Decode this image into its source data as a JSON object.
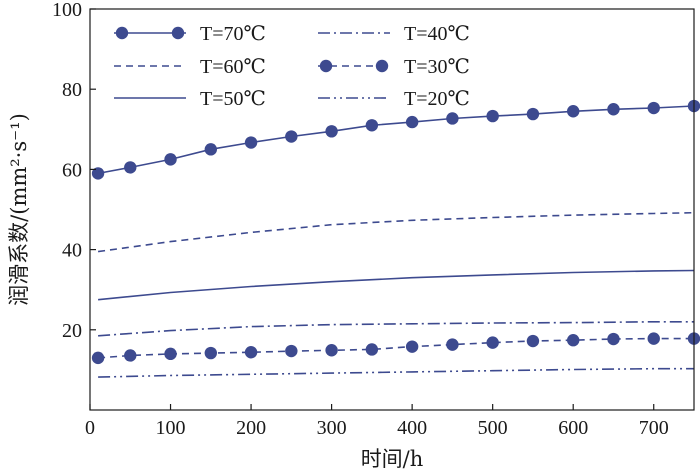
{
  "chart_data": {
    "type": "line",
    "xlabel": "时间/h",
    "ylabel": "润滑系数/(mm²·s⁻¹)",
    "xlim": [
      0,
      750
    ],
    "ylim": [
      0,
      100
    ],
    "xticks": [
      0,
      100,
      200,
      300,
      400,
      500,
      600,
      700
    ],
    "yticks": [
      20,
      40,
      60,
      80,
      100
    ],
    "grid": false,
    "legend_position": "top",
    "line_color": "#3d4a8f",
    "series": [
      {
        "name": "T=70℃",
        "style": "solid-markers",
        "x": [
          10,
          50,
          100,
          150,
          200,
          250,
          300,
          350,
          400,
          450,
          500,
          550,
          600,
          650,
          700,
          750
        ],
        "y": [
          59,
          60.5,
          62.5,
          65,
          66.7,
          68.2,
          69.5,
          71,
          71.8,
          72.7,
          73.3,
          73.8,
          74.5,
          75,
          75.3,
          75.8
        ]
      },
      {
        "name": "T=60℃",
        "style": "dashed",
        "x": [
          10,
          100,
          200,
          300,
          400,
          500,
          600,
          700,
          750
        ],
        "y": [
          39.5,
          42,
          44.3,
          46.2,
          47.3,
          48,
          48.6,
          49,
          49.2
        ]
      },
      {
        "name": "T=50℃",
        "style": "solid",
        "x": [
          10,
          100,
          200,
          300,
          400,
          500,
          600,
          700,
          750
        ],
        "y": [
          27.5,
          29.3,
          30.8,
          32,
          33,
          33.7,
          34.3,
          34.7,
          34.8
        ]
      },
      {
        "name": "T=40℃",
        "style": "dash-dot",
        "x": [
          10,
          100,
          200,
          300,
          400,
          500,
          600,
          700,
          750
        ],
        "y": [
          18.5,
          19.8,
          20.8,
          21.3,
          21.5,
          21.7,
          21.8,
          22,
          22
        ]
      },
      {
        "name": "T=30℃",
        "style": "dashed-markers",
        "x": [
          10,
          50,
          100,
          150,
          200,
          250,
          300,
          350,
          400,
          450,
          500,
          550,
          600,
          650,
          700,
          750
        ],
        "y": [
          13,
          13.6,
          14,
          14.2,
          14.4,
          14.7,
          14.9,
          15.1,
          15.8,
          16.3,
          16.8,
          17.2,
          17.4,
          17.7,
          17.8,
          17.8
        ]
      },
      {
        "name": "T=20℃",
        "style": "dash-dot-dot",
        "x": [
          10,
          100,
          200,
          300,
          400,
          500,
          600,
          700,
          750
        ],
        "y": [
          8.2,
          8.6,
          8.9,
          9.2,
          9.5,
          9.8,
          10.1,
          10.3,
          10.3
        ]
      }
    ]
  }
}
